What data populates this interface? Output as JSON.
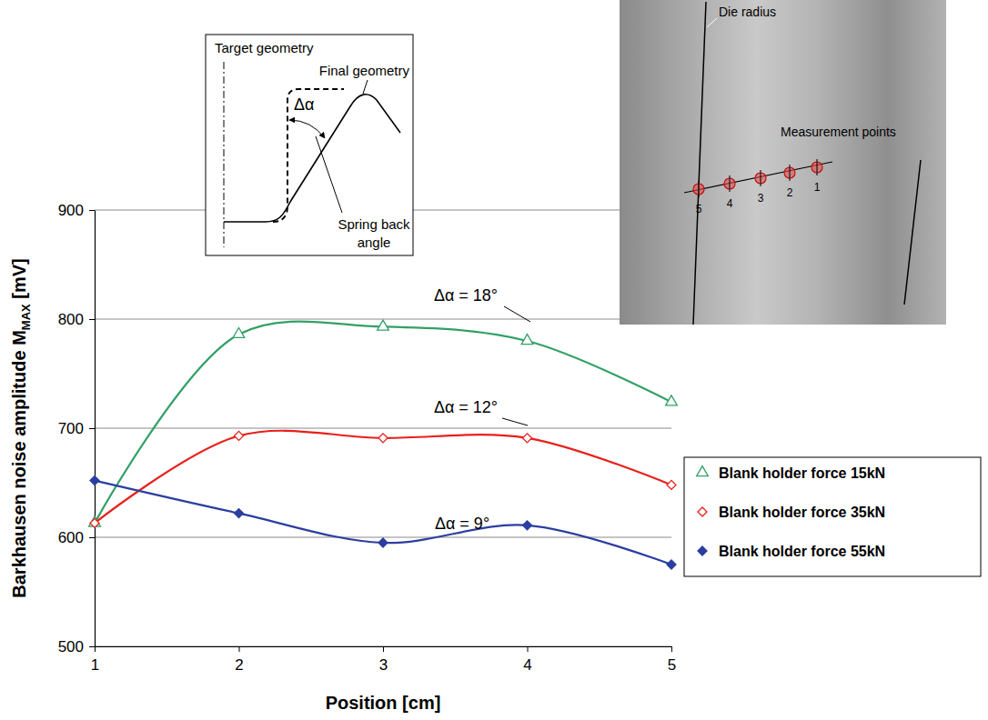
{
  "chart_data": {
    "type": "line",
    "xlabel": "Position [cm]",
    "ylabel": [
      "Barkhausen noise amplitude M",
      "MAX",
      " [mV]"
    ],
    "x": [
      1,
      2,
      3,
      4,
      5
    ],
    "xlim": [
      1,
      5
    ],
    "xticks": [
      1,
      2,
      3,
      4,
      5
    ],
    "ylim": [
      500,
      900
    ],
    "yticks": [
      500,
      600,
      700,
      800,
      900
    ],
    "grid": true,
    "legend": "right",
    "series": [
      {
        "name": "Blank holder force 15kN",
        "color": "#33a066",
        "marker": "triangle-open",
        "line_style": "smooth",
        "values": [
          613,
          786,
          793,
          780,
          724
        ]
      },
      {
        "name": "Blank holder force 35kN",
        "color": "#e8201c",
        "marker": "diamond-open",
        "line_style": "smooth",
        "values": [
          613,
          693,
          691,
          691,
          648
        ]
      },
      {
        "name": "Blank holder force 55kN",
        "color": "#2b3ea0",
        "marker": "diamond",
        "line_style": "smooth",
        "values": [
          652,
          622,
          595,
          611,
          575
        ]
      }
    ],
    "annotations": [
      "Δα = 18°",
      "Δα = 12°",
      "Δα = 9°"
    ]
  },
  "inset_diagram": {
    "target_label": "Target geometry",
    "final_label": "Final geometry",
    "angle_label": "Δα",
    "spring_back_label": "Spring back angle"
  },
  "photo": {
    "die_radius_label": "Die radius",
    "points_label": "Measurement points",
    "point_numbers": [
      5,
      4,
      3,
      2,
      1
    ]
  }
}
